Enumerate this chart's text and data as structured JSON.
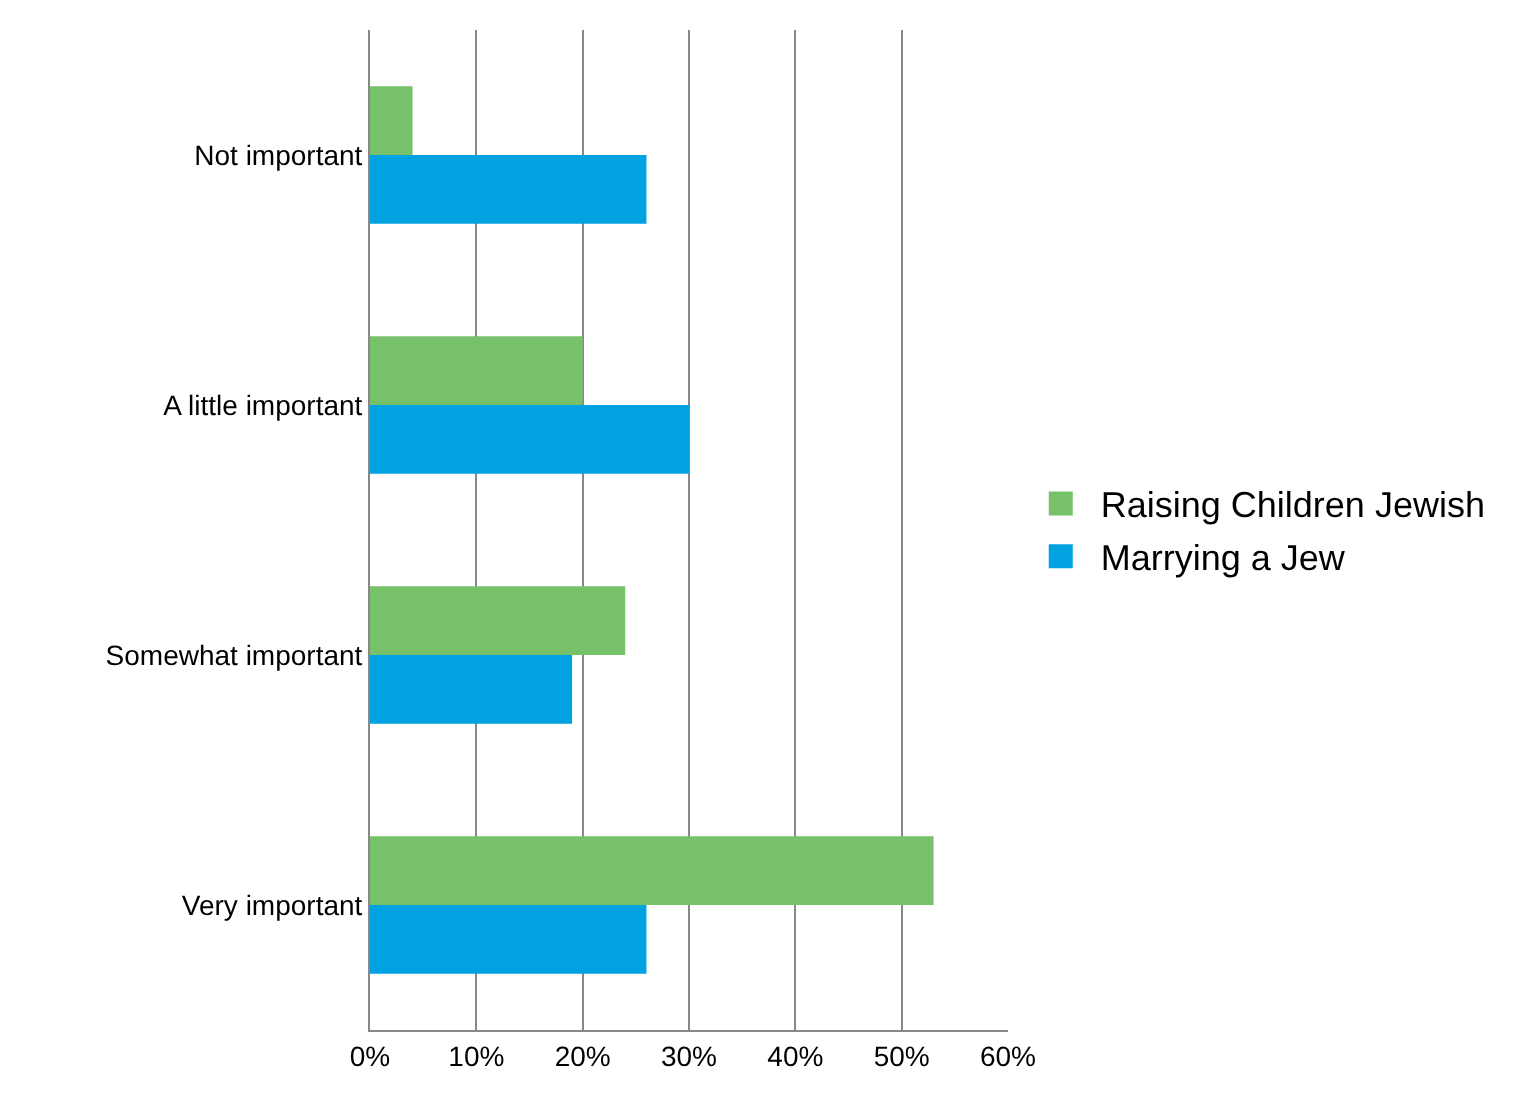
{
  "chart_data": {
    "type": "bar",
    "orientation": "horizontal",
    "categories": [
      "Not important",
      "A little important",
      "Somewhat important",
      "Very important"
    ],
    "series": [
      {
        "name": "Raising Children Jewish",
        "color": "#77c16b",
        "values": [
          4,
          20,
          24,
          53
        ]
      },
      {
        "name": "Marrying a Jew",
        "color": "#00a2e2",
        "values": [
          26,
          30,
          19,
          26
        ]
      }
    ],
    "xlim": [
      0,
      60
    ],
    "xticks": [
      {
        "value": 0,
        "label": "0%"
      },
      {
        "value": 10,
        "label": "10%"
      },
      {
        "value": 20,
        "label": "20%"
      },
      {
        "value": 30,
        "label": "30%"
      },
      {
        "value": 40,
        "label": "40%"
      },
      {
        "value": 50,
        "label": "50%"
      },
      {
        "value": 60,
        "label": "60%"
      }
    ],
    "grid": "x",
    "legend": "right"
  }
}
